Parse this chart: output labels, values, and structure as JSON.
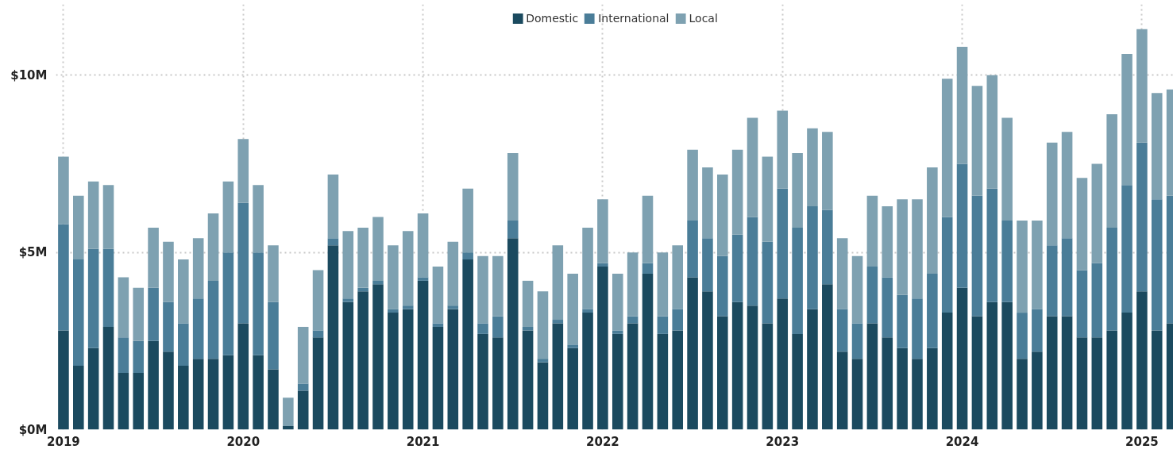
{
  "chart_data": {
    "type": "bar",
    "stacked": true,
    "x": [
      "2019-01",
      "2019-02",
      "2019-03",
      "2019-04",
      "2019-05",
      "2019-06",
      "2019-07",
      "2019-08",
      "2019-09",
      "2019-10",
      "2019-11",
      "2019-12",
      "2020-01",
      "2020-02",
      "2020-03",
      "2020-04",
      "2020-05",
      "2020-06",
      "2020-07",
      "2020-08",
      "2020-09",
      "2020-10",
      "2020-11",
      "2020-12",
      "2021-01",
      "2021-02",
      "2021-03",
      "2021-04",
      "2021-05",
      "2021-06",
      "2021-07",
      "2021-08",
      "2021-09",
      "2021-10",
      "2021-11",
      "2021-12",
      "2022-01",
      "2022-02",
      "2022-03",
      "2022-04",
      "2022-05",
      "2022-06",
      "2022-07",
      "2022-08",
      "2022-09",
      "2022-10",
      "2022-11",
      "2022-12",
      "2023-01",
      "2023-02",
      "2023-03",
      "2023-04",
      "2023-05",
      "2023-06",
      "2023-07",
      "2023-08",
      "2023-09",
      "2023-10",
      "2023-11",
      "2023-12",
      "2024-01",
      "2024-02",
      "2024-03",
      "2024-04",
      "2024-05",
      "2024-06",
      "2024-07",
      "2024-08",
      "2024-09",
      "2024-10",
      "2024-11",
      "2024-12",
      "2025-01",
      "2025-02",
      "2025-03"
    ],
    "series": [
      {
        "name": "Domestic",
        "color": "#1b4a5f",
        "values": [
          2.8,
          1.8,
          2.3,
          2.9,
          1.6,
          1.6,
          2.5,
          2.2,
          1.8,
          2.0,
          2.0,
          2.1,
          3.0,
          2.1,
          1.7,
          0.1,
          1.1,
          2.6,
          5.2,
          3.6,
          3.9,
          4.1,
          3.3,
          3.4,
          4.2,
          2.9,
          3.4,
          4.8,
          2.7,
          2.6,
          5.4,
          2.8,
          1.9,
          3.0,
          2.3,
          3.3,
          4.6,
          2.7,
          3.0,
          4.4,
          2.7,
          2.8,
          4.3,
          3.9,
          3.2,
          3.6,
          3.5,
          3.0,
          3.7,
          2.7,
          3.4,
          4.1,
          2.2,
          2.0,
          3.0,
          2.6,
          2.3,
          2.0,
          2.3,
          3.3,
          4.0,
          3.2,
          3.6,
          3.6,
          2.0,
          2.2,
          3.2,
          3.2,
          2.6,
          2.6,
          2.8,
          3.3,
          3.9,
          2.8,
          3.0
        ]
      },
      {
        "name": "International",
        "color": "#4a7d98",
        "values": [
          3.0,
          3.0,
          2.8,
          2.2,
          1.0,
          0.9,
          1.5,
          1.4,
          1.2,
          1.7,
          2.2,
          2.9,
          3.4,
          2.9,
          1.9,
          0.0,
          0.2,
          0.2,
          0.2,
          0.1,
          0.1,
          0.1,
          0.1,
          0.1,
          0.1,
          0.1,
          0.1,
          0.2,
          0.3,
          0.6,
          0.5,
          0.1,
          0.1,
          0.1,
          0.1,
          0.1,
          0.1,
          0.1,
          0.2,
          0.3,
          0.5,
          0.6,
          1.6,
          1.5,
          1.7,
          1.9,
          2.5,
          2.3,
          3.1,
          3.0,
          2.9,
          2.1,
          1.2,
          1.0,
          1.6,
          1.7,
          1.5,
          1.7,
          2.1,
          2.7,
          3.5,
          3.4,
          3.2,
          2.3,
          1.3,
          1.2,
          2.0,
          2.2,
          1.9,
          2.1,
          2.9,
          3.6,
          4.2,
          3.7,
          3.6
        ]
      },
      {
        "name": "Local",
        "color": "#7ea1b1",
        "values": [
          1.9,
          1.8,
          1.9,
          1.8,
          1.7,
          1.5,
          1.7,
          1.7,
          1.8,
          1.7,
          1.9,
          2.0,
          1.8,
          1.9,
          1.6,
          0.8,
          1.6,
          1.7,
          1.8,
          1.9,
          1.7,
          1.8,
          1.8,
          2.1,
          1.8,
          1.6,
          1.8,
          1.8,
          1.9,
          1.7,
          1.9,
          1.3,
          1.9,
          2.1,
          2.0,
          2.3,
          1.8,
          1.6,
          1.8,
          1.9,
          1.8,
          1.8,
          2.0,
          2.0,
          2.3,
          2.4,
          2.8,
          2.4,
          2.2,
          2.1,
          2.2,
          2.2,
          2.0,
          1.9,
          2.0,
          2.0,
          2.7,
          2.8,
          3.0,
          3.9,
          3.3,
          3.1,
          3.2,
          2.9,
          2.6,
          2.5,
          2.9,
          3.0,
          2.6,
          2.8,
          3.2,
          3.7,
          3.2,
          3.0,
          3.0
        ]
      }
    ],
    "xlim": [
      "2018-12-16",
      "2025-03-04"
    ],
    "xticks": [
      "2019",
      "2020",
      "2021",
      "2022",
      "2023",
      "2024",
      "2025"
    ],
    "ylim": [
      0,
      12
    ],
    "yticks": [
      {
        "value": 0,
        "label": "$0M"
      },
      {
        "value": 5,
        "label": "$5M"
      },
      {
        "value": 10,
        "label": "$10M"
      }
    ],
    "grid": true,
    "legend": "top"
  }
}
